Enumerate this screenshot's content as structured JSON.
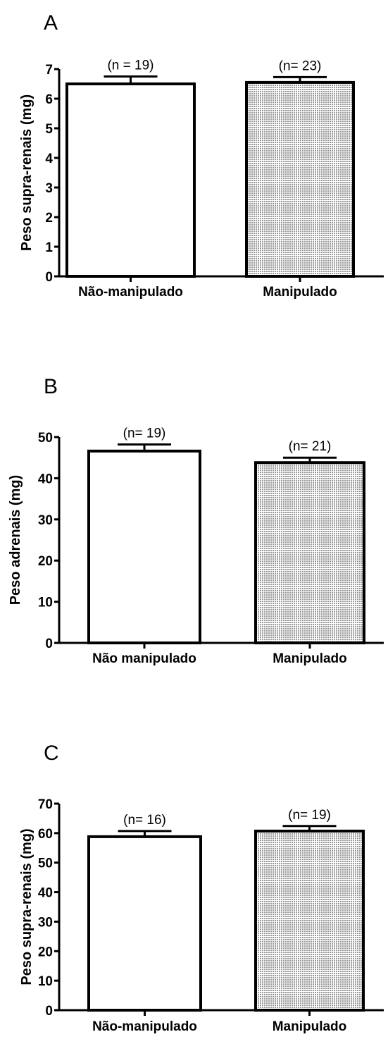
{
  "chart_data": [
    {
      "type": "bar",
      "panel": "A",
      "ylabel": "Peso supra-renais (mg)",
      "categories": [
        "Não-manipulado",
        "Manipulado"
      ],
      "values": [
        6.5,
        6.55
      ],
      "errors": [
        0.25,
        0.18
      ],
      "annotations": [
        "(n = 19)",
        "(n= 23)"
      ],
      "ylim": [
        0,
        7
      ],
      "yticks": [
        0,
        1,
        2,
        3,
        4,
        5,
        6,
        7
      ],
      "fills": [
        "#ffffff",
        "#d4d4d4"
      ]
    },
    {
      "type": "bar",
      "panel": "B",
      "ylabel": "Peso adrenais (mg)",
      "categories": [
        "Não manipulado",
        "Manipulado"
      ],
      "values": [
        46.6,
        43.8
      ],
      "errors": [
        1.6,
        1.2
      ],
      "annotations": [
        "(n= 19)",
        "(n= 21)"
      ],
      "ylim": [
        0,
        50
      ],
      "yticks": [
        0,
        10,
        20,
        30,
        40,
        50
      ],
      "fills": [
        "#ffffff",
        "#d4d4d4"
      ]
    },
    {
      "type": "bar",
      "panel": "C",
      "ylabel": "Peso supra-renais (mg)",
      "categories": [
        "Não-manipulado",
        "Manipulado"
      ],
      "values": [
        58.8,
        60.7
      ],
      "errors": [
        1.9,
        1.7
      ],
      "annotations": [
        "(n= 16)",
        "(n= 19)"
      ],
      "ylim": [
        0,
        70
      ],
      "yticks": [
        0,
        10,
        20,
        30,
        40,
        50,
        60,
        70
      ],
      "fills": [
        "#ffffff",
        "#d4d4d4"
      ]
    }
  ]
}
